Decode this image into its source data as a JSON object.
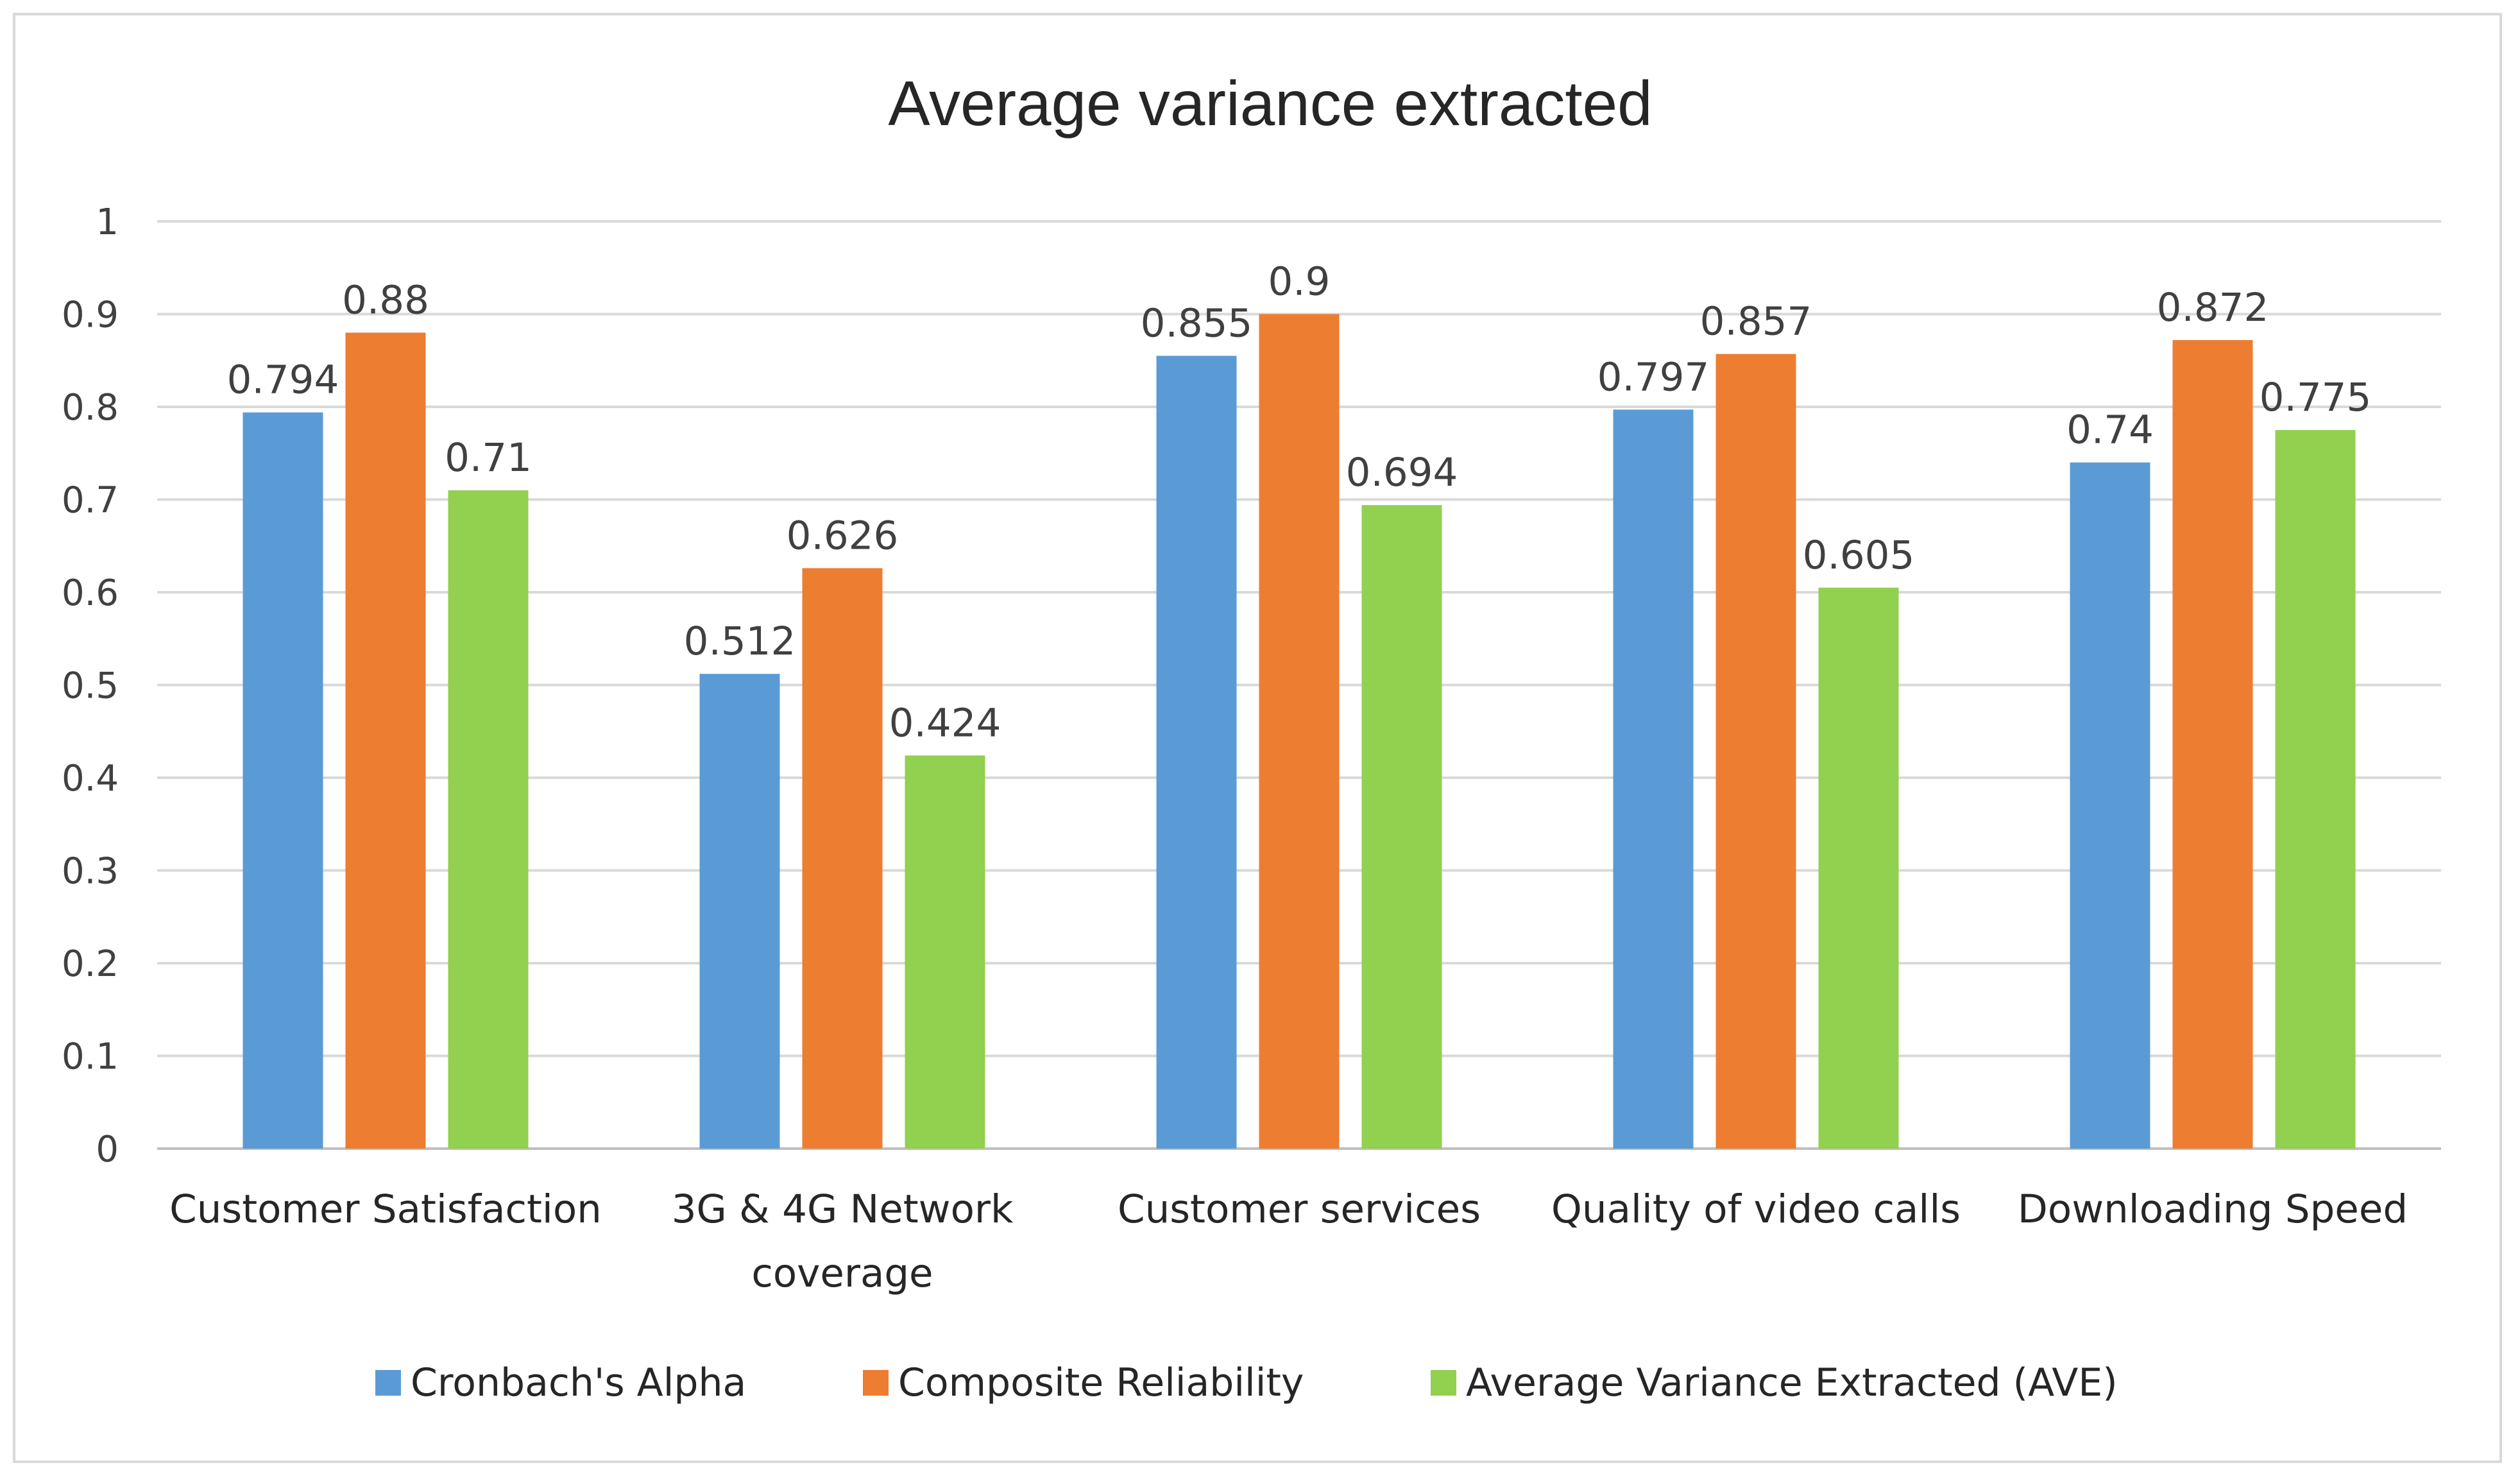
{
  "chart_data": {
    "type": "bar",
    "title": "Average variance extracted",
    "categories": [
      [
        "Customer Satisfaction"
      ],
      [
        "3G & 4G Network",
        "coverage"
      ],
      [
        "Customer services"
      ],
      [
        "Quality of video calls"
      ],
      [
        "Downloading Speed"
      ]
    ],
    "series": [
      {
        "name": "Cronbach's Alpha",
        "color": "#5b9bd5",
        "values": [
          0.794,
          0.512,
          0.855,
          0.797,
          0.74
        ],
        "labels": [
          "0.794",
          "0.512",
          "0.855",
          "0.797",
          "0.74"
        ]
      },
      {
        "name": "Composite Reliability",
        "color": "#ed7d31",
        "values": [
          0.88,
          0.626,
          0.9,
          0.857,
          0.872
        ],
        "labels": [
          "0.88",
          "0.626",
          "0.9",
          "0.857",
          "0.872"
        ]
      },
      {
        "name": "Average Variance Extracted (AVE)",
        "color": "#92d050",
        "values": [
          0.71,
          0.424,
          0.694,
          0.605,
          0.775
        ],
        "labels": [
          "0.71",
          "0.424",
          "0.694",
          "0.605",
          "0.775"
        ]
      }
    ],
    "ylim": [
      0,
      1
    ],
    "yticks": [
      "0",
      "0.1",
      "0.2",
      "0.3",
      "0.4",
      "0.5",
      "0.6",
      "0.7",
      "0.8",
      "0.9",
      "1"
    ],
    "xlabel": "",
    "ylabel": "",
    "grid": true,
    "legend_position": "bottom"
  }
}
